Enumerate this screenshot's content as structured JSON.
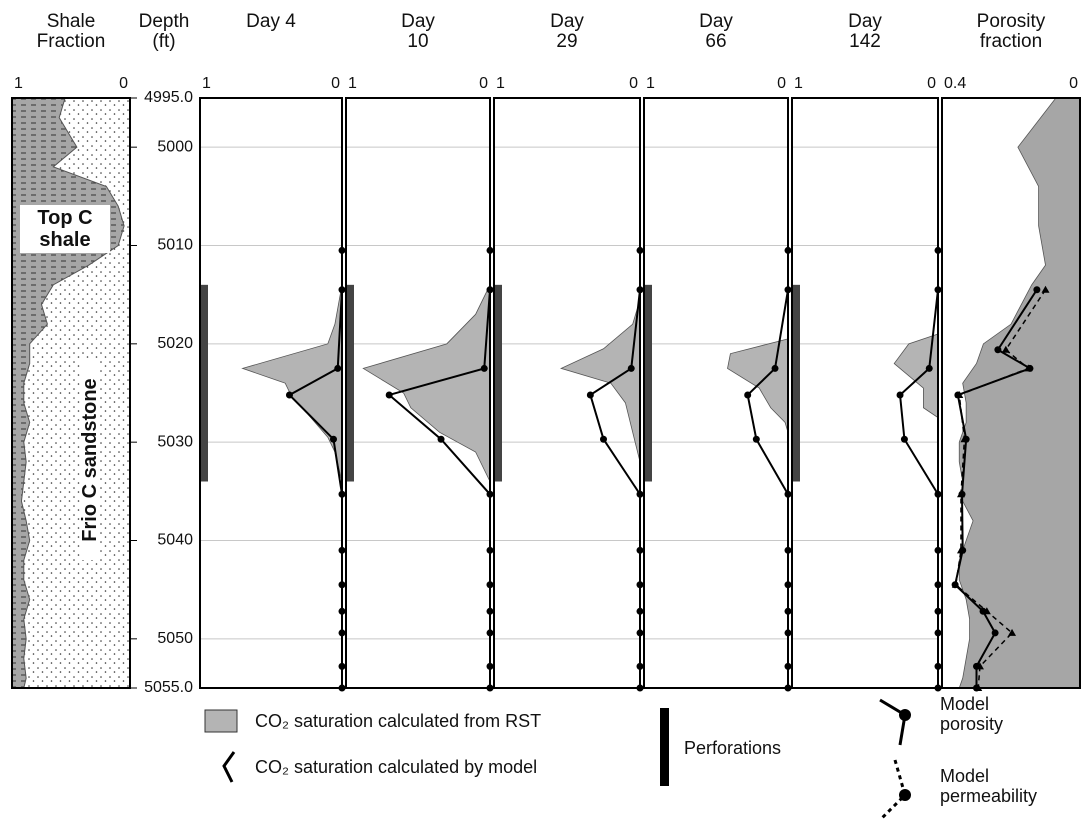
{
  "chart_data": [
    {
      "type": "shale",
      "title": "Shale Fraction",
      "xlim": [
        1,
        0
      ],
      "xticks": [
        1,
        0
      ],
      "color": "#a6a6a6",
      "annotations": [
        "Top C shale",
        "Frio C sandstone"
      ],
      "depth": [
        4995,
        4997,
        4999,
        5000,
        5002,
        5004,
        5006,
        5008,
        5010,
        5012,
        5014,
        5016,
        5018,
        5020,
        5022,
        5024,
        5026,
        5028,
        5030,
        5032,
        5034,
        5036,
        5038,
        5040,
        5042,
        5044,
        5046,
        5048,
        5050,
        5052,
        5054,
        5055
      ],
      "values": [
        0.55,
        0.6,
        0.5,
        0.45,
        0.65,
        0.2,
        0.1,
        0.05,
        0.1,
        0.35,
        0.65,
        0.75,
        0.7,
        0.85,
        0.85,
        0.9,
        0.9,
        0.85,
        0.9,
        0.88,
        0.9,
        0.92,
        0.88,
        0.85,
        0.9,
        0.9,
        0.85,
        0.9,
        0.88,
        0.9,
        0.88,
        0.9
      ]
    },
    {
      "type": "depth",
      "title": "Depth (ft)",
      "ylim": [
        4995,
        5055
      ],
      "yticks": [
        {
          "value": 4995,
          "label": "4995.0"
        },
        5000,
        5010,
        5020,
        5030,
        5040,
        5050,
        {
          "value": 5055,
          "label": "5055.0"
        }
      ]
    },
    {
      "type": "saturation",
      "title": "Day 4",
      "xlim": [
        1,
        0
      ],
      "xticks": [
        1,
        0
      ],
      "grid": true,
      "perforations": [
        5014,
        5034
      ],
      "rst": {
        "color": "#b4b4b4",
        "depth": [
          5014,
          5018,
          5020,
          5022.5,
          5024,
          5025.5,
          5027,
          5029.5,
          5031,
          5034
        ],
        "values": [
          0,
          0.05,
          0.1,
          0.7,
          0.4,
          0.35,
          0.25,
          0.1,
          0.05,
          0
        ]
      },
      "model": {
        "color": "#000000",
        "depth": [
          5010.5,
          5014.5,
          5022.5,
          5025.2,
          5029.7,
          5035.3,
          5041,
          5044.5,
          5047.2,
          5049.4,
          5052.8,
          5055
        ],
        "values": [
          0,
          0,
          0.03,
          0.37,
          0.06,
          0,
          0,
          0,
          0,
          0,
          0,
          0
        ]
      }
    },
    {
      "type": "saturation",
      "title": "Day 10",
      "xlim": [
        1,
        0
      ],
      "xticks": [
        1,
        0
      ],
      "grid": true,
      "perforations": [
        5014,
        5034
      ],
      "rst": {
        "color": "#b4b4b4",
        "depth": [
          5014,
          5017,
          5020,
          5022.5,
          5025,
          5026.5,
          5029,
          5031,
          5034
        ],
        "values": [
          0,
          0.1,
          0.3,
          0.88,
          0.6,
          0.55,
          0.35,
          0.1,
          0
        ]
      },
      "model": {
        "color": "#000000",
        "depth": [
          5010.5,
          5014.5,
          5022.5,
          5025.2,
          5029.7,
          5035.3,
          5041,
          5044.5,
          5047.2,
          5049.4,
          5052.8,
          5055
        ],
        "values": [
          0,
          0,
          0.04,
          0.7,
          0.34,
          0,
          0,
          0,
          0,
          0,
          0,
          0
        ]
      }
    },
    {
      "type": "saturation",
      "title": "Day 29",
      "xlim": [
        1,
        0
      ],
      "xticks": [
        1,
        0
      ],
      "grid": true,
      "perforations": [
        5014,
        5034
      ],
      "rst": {
        "color": "#b4b4b4",
        "depth": [
          5015.5,
          5018,
          5020.5,
          5022.5,
          5024,
          5026,
          5029,
          5032
        ],
        "values": [
          0,
          0.05,
          0.25,
          0.54,
          0.2,
          0.1,
          0.05,
          0
        ]
      },
      "model": {
        "color": "#000000",
        "depth": [
          5010.5,
          5014.5,
          5022.5,
          5025.2,
          5029.7,
          5035.3,
          5041,
          5044.5,
          5047.2,
          5049.4,
          5052.8,
          5055
        ],
        "values": [
          0,
          0,
          0.06,
          0.34,
          0.25,
          0,
          0,
          0,
          0,
          0,
          0,
          0
        ]
      }
    },
    {
      "type": "saturation",
      "title": "Day 66",
      "xlim": [
        1,
        0
      ],
      "xticks": [
        1,
        0
      ],
      "grid": true,
      "perforations": [
        5014,
        5034
      ],
      "rst": {
        "color": "#b4b4b4",
        "depth": [
          5019.5,
          5021,
          5022.5,
          5024.5,
          5026.5,
          5028,
          5029
        ],
        "values": [
          0,
          0.4,
          0.42,
          0.2,
          0.12,
          0.02,
          0
        ]
      },
      "model": {
        "color": "#000000",
        "depth": [
          5010.5,
          5014.5,
          5022.5,
          5025.2,
          5029.7,
          5035.3,
          5041,
          5044.5,
          5047.2,
          5049.4,
          5052.8,
          5055
        ],
        "values": [
          0,
          0,
          0.09,
          0.28,
          0.22,
          0,
          0,
          0,
          0,
          0,
          0,
          0
        ]
      }
    },
    {
      "type": "saturation",
      "title": "Day 142",
      "xlim": [
        1,
        0
      ],
      "xticks": [
        1,
        0
      ],
      "grid": true,
      "perforations": [
        5014,
        5034
      ],
      "rst": {
        "color": "#b4b4b4",
        "depth": [
          5019,
          5020,
          5022,
          5024.5,
          5026.5,
          5027.5
        ],
        "values": [
          0,
          0.2,
          0.3,
          0.1,
          0.1,
          0
        ]
      },
      "model": {
        "color": "#000000",
        "depth": [
          5010.5,
          5014.5,
          5022.5,
          5025.2,
          5029.7,
          5035.3,
          5041,
          5044.5,
          5047.2,
          5049.4,
          5052.8,
          5055
        ],
        "values": [
          0,
          0,
          0.06,
          0.26,
          0.23,
          0,
          0,
          0,
          0,
          0,
          0,
          0
        ]
      }
    },
    {
      "type": "porosity",
      "title": "Porosity fraction",
      "xlim": [
        0.4,
        0
      ],
      "xticks": [
        0.4,
        0
      ],
      "color": "#a6a6a6",
      "depth": [
        4995,
        5000,
        5004,
        5008,
        5012,
        5014,
        5018,
        5020,
        5022,
        5024,
        5026,
        5028,
        5030,
        5032,
        5034,
        5036,
        5038,
        5040,
        5042,
        5044,
        5046,
        5048,
        5050,
        5052,
        5054,
        5055
      ],
      "values": [
        0.07,
        0.18,
        0.12,
        0.12,
        0.1,
        0.14,
        0.2,
        0.28,
        0.3,
        0.34,
        0.33,
        0.33,
        0.35,
        0.35,
        0.34,
        0.34,
        0.31,
        0.33,
        0.35,
        0.35,
        0.33,
        0.32,
        0.32,
        0.33,
        0.34,
        0.35
      ],
      "series": [
        {
          "name": "Model porosity",
          "color": "#000000",
          "style": "solid",
          "marker": "circle",
          "depth": [
            5014.5,
            5020.6,
            5022.5,
            5025.2,
            5029.7,
            5035.3,
            5041,
            5044.5,
            5047.2,
            5049.4,
            5052.8,
            5055
          ],
          "values": [
            0.125,
            0.238,
            0.145,
            0.354,
            0.33,
            0.342,
            0.34,
            0.362,
            0.281,
            0.246,
            0.3,
            0.3
          ]
        },
        {
          "name": "Model permeability",
          "color": "#000000",
          "style": "dashed",
          "marker": "triangle",
          "depth": [
            5014.5,
            5020.6,
            5022.5,
            5025.2,
            5029.7,
            5035.3,
            5041,
            5044.5,
            5047.2,
            5049.4,
            5052.8,
            5055
          ],
          "values": [
            0.1,
            0.215,
            0.15,
            0.35,
            0.335,
            0.345,
            0.345,
            0.36,
            0.27,
            0.197,
            0.29,
            0.295
          ]
        }
      ]
    }
  ],
  "legend": [
    "CO₂ saturation calculated from RST",
    "CO₂ saturation calculated by model",
    "Perforations"
  ]
}
